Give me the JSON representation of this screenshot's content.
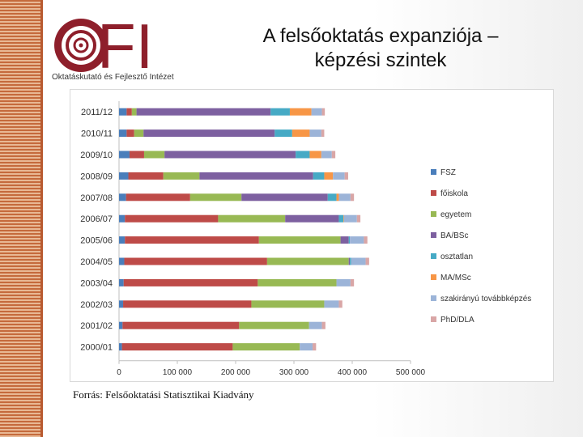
{
  "header": {
    "logo_text": "FI",
    "logo_subtitle": "Oktatáskutató és Fejlesztő Intézet",
    "title_line1": "A felsőoktatás expanziója –",
    "title_line2": "képzési szintek"
  },
  "footer": {
    "source": "Forrás: Felsőoktatási Statisztikai Kiadvány"
  },
  "chart_data": {
    "type": "bar",
    "orientation": "horizontal",
    "stacked": true,
    "title": "",
    "xlabel": "",
    "ylabel": "",
    "xlim": [
      0,
      500000
    ],
    "x_ticks": [
      0,
      100000,
      200000,
      300000,
      400000,
      500000
    ],
    "x_tick_labels": [
      "0",
      "100 000",
      "200 000",
      "300 000",
      "400 000",
      "500 000"
    ],
    "grid": false,
    "legend_position": "right",
    "categories": [
      "2011/12",
      "2010/11",
      "2009/10",
      "2008/09",
      "2007/08",
      "2006/07",
      "2005/06",
      "2004/05",
      "2003/04",
      "2002/03",
      "2001/02",
      "2000/01"
    ],
    "series": [
      {
        "name": "FSZ",
        "color": "#4a7ebb",
        "values": [
          13000,
          13000,
          18000,
          16000,
          12000,
          10000,
          10000,
          9000,
          8000,
          7000,
          6000,
          5000
        ]
      },
      {
        "name": "főiskola",
        "color": "#be4b48",
        "values": [
          9000,
          13000,
          25000,
          60000,
          110000,
          160000,
          230000,
          245000,
          230000,
          220000,
          200000,
          190000
        ]
      },
      {
        "name": "egyetem",
        "color": "#98b954",
        "values": [
          8000,
          16000,
          35000,
          62000,
          88000,
          115000,
          140000,
          140000,
          135000,
          125000,
          120000,
          115000
        ]
      },
      {
        "name": "BA/BSc",
        "color": "#7d60a0",
        "values": [
          230000,
          225000,
          225000,
          195000,
          148000,
          92000,
          14000,
          2000,
          0,
          0,
          0,
          0
        ]
      },
      {
        "name": "osztatlan",
        "color": "#46aac5",
        "values": [
          33000,
          30000,
          24000,
          19000,
          15000,
          8000,
          2000,
          2000,
          0,
          0,
          0,
          0
        ]
      },
      {
        "name": "MA/MSc",
        "color": "#f79646",
        "values": [
          37000,
          30000,
          20000,
          15000,
          4000,
          1000,
          0,
          0,
          0,
          0,
          0,
          0
        ]
      },
      {
        "name": "szakirányú továbbképzés",
        "color": "#9cb4d8",
        "values": [
          18000,
          20000,
          18000,
          20000,
          20000,
          22000,
          24000,
          25000,
          24000,
          25000,
          22000,
          22000
        ]
      },
      {
        "name": "PhD/DLA",
        "color": "#d9a6a6",
        "values": [
          5000,
          5000,
          6000,
          6000,
          6000,
          6000,
          6000,
          6000,
          6000,
          6000,
          6000,
          6000
        ]
      }
    ]
  }
}
